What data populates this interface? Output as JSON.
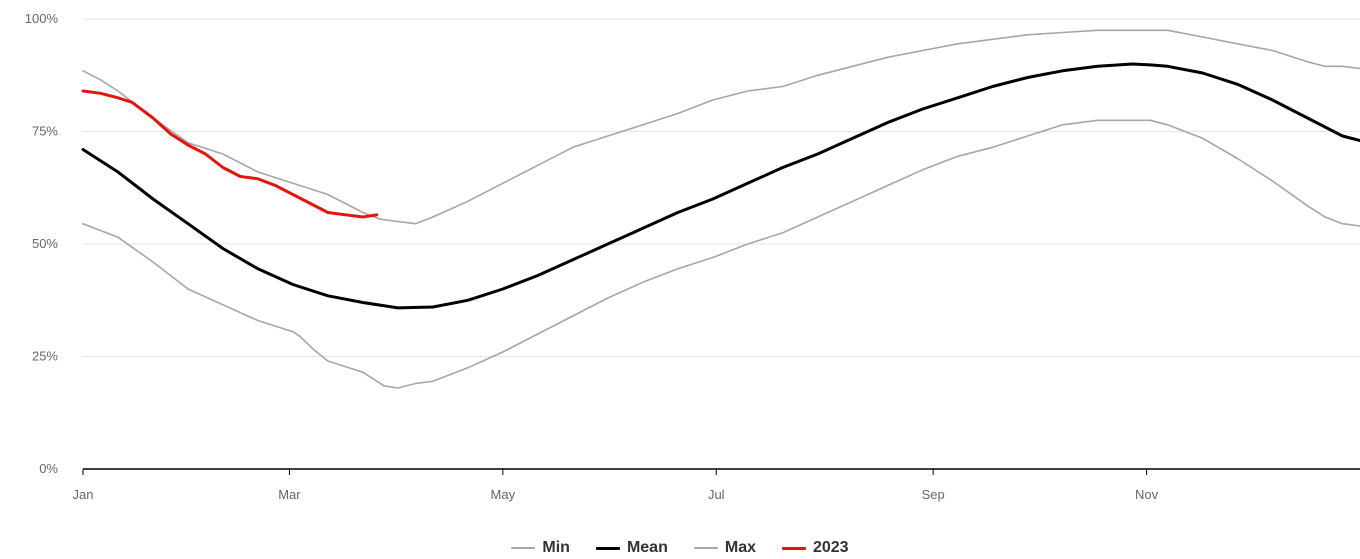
{
  "chart_data": {
    "type": "line",
    "title": "",
    "xlabel": "",
    "ylabel": "",
    "x_tick_labels": [
      "Jan",
      "Mar",
      "May",
      "Jul",
      "Sep",
      "Nov"
    ],
    "x_tick_days": [
      0,
      59,
      120,
      181,
      243,
      304
    ],
    "x_range_days": [
      0,
      365
    ],
    "ylim": [
      0,
      100
    ],
    "y_ticks": [
      0,
      25,
      50,
      75,
      100
    ],
    "y_tick_labels": [
      "0%",
      "25%",
      "50%",
      "75%",
      "100%"
    ],
    "grid": "horizontal",
    "legend_position": "bottom-center",
    "series": [
      {
        "name": "Min",
        "color": "#a6a6a6",
        "x_day": [
          0,
          10,
          20,
          30,
          40,
          50,
          60,
          62,
          66,
          70,
          74,
          80,
          86,
          90,
          95,
          100,
          110,
          120,
          130,
          140,
          150,
          160,
          170,
          180,
          190,
          200,
          210,
          220,
          230,
          240,
          250,
          260,
          270,
          280,
          290,
          300,
          305,
          310,
          320,
          330,
          340,
          350,
          355,
          360,
          365
        ],
        "values": [
          54.5,
          51.5,
          46,
          40,
          36.5,
          33,
          30.5,
          29.5,
          26.5,
          24,
          23,
          21.5,
          18.5,
          18,
          19,
          19.5,
          22.5,
          26,
          30,
          34,
          38,
          41.5,
          44.5,
          47,
          50,
          52.5,
          56,
          59.5,
          63,
          66.5,
          69.5,
          71.5,
          74,
          76.5,
          77.5,
          77.5,
          77.5,
          76.5,
          73.5,
          69,
          64,
          58.5,
          56,
          54.5,
          54
        ]
      },
      {
        "name": "Mean",
        "color": "#000000",
        "x_day": [
          0,
          10,
          20,
          30,
          40,
          50,
          60,
          70,
          80,
          90,
          100,
          110,
          120,
          130,
          140,
          150,
          160,
          170,
          180,
          190,
          200,
          210,
          220,
          230,
          240,
          250,
          260,
          270,
          280,
          290,
          300,
          305,
          310,
          320,
          330,
          340,
          350,
          355,
          360,
          365
        ],
        "values": [
          71,
          66,
          60,
          54.5,
          49,
          44.5,
          41,
          38.5,
          37,
          35.8,
          36,
          37.5,
          40,
          43,
          46.5,
          50,
          53.5,
          57,
          60,
          63.5,
          67,
          70,
          73.5,
          77,
          80,
          82.5,
          85,
          87,
          88.5,
          89.5,
          90,
          89.8,
          89.5,
          88,
          85.5,
          82,
          78,
          76,
          74,
          73
        ]
      },
      {
        "name": "Max",
        "color": "#a6a6a6",
        "x_day": [
          0,
          5,
          10,
          20,
          30,
          40,
          50,
          60,
          70,
          80,
          85,
          90,
          95,
          100,
          110,
          120,
          130,
          140,
          150,
          160,
          170,
          180,
          190,
          200,
          210,
          220,
          230,
          240,
          250,
          260,
          270,
          280,
          290,
          300,
          305,
          310,
          320,
          330,
          340,
          350,
          355,
          360,
          365
        ],
        "values": [
          88.5,
          86.5,
          84,
          78,
          72.5,
          70,
          66,
          63.5,
          61,
          57,
          55.5,
          55,
          54.5,
          56,
          59.5,
          63.5,
          67.5,
          71.5,
          74,
          76.5,
          79,
          82,
          84,
          85,
          87.5,
          89.5,
          91.5,
          93,
          94.5,
          95.5,
          96.5,
          97,
          97.5,
          97.5,
          97.5,
          97.5,
          96,
          94.5,
          93,
          90.5,
          89.5,
          89.5,
          89
        ]
      },
      {
        "name": "2023",
        "color": "#e8130c",
        "x_day": [
          0,
          5,
          10,
          14,
          20,
          25,
          30,
          35,
          40,
          45,
          50,
          55,
          60,
          65,
          70,
          75,
          80,
          84
        ],
        "values": [
          84,
          83.5,
          82.5,
          81.5,
          78,
          74.5,
          72,
          70,
          67,
          65,
          64.5,
          63,
          61,
          59,
          57,
          56.5,
          56,
          56.5
        ]
      }
    ]
  }
}
